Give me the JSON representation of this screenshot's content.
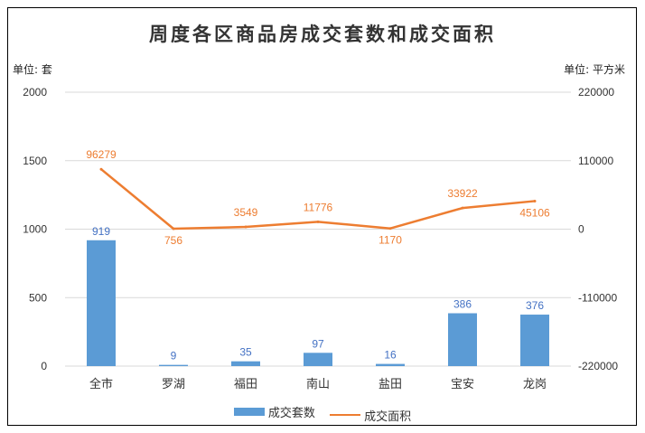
{
  "chart_data": {
    "type": "bar+line",
    "title": "周度各区商品房成交套数和成交面积",
    "categories": [
      "全市",
      "罗湖",
      "福田",
      "南山",
      "盐田",
      "宝安",
      "龙岗"
    ],
    "series": [
      {
        "name": "成交套数",
        "type": "bar",
        "axis": "left",
        "values": [
          919,
          9,
          35,
          97,
          16,
          386,
          376
        ],
        "color": "#5b9bd5"
      },
      {
        "name": "成交面积",
        "type": "line",
        "axis": "right",
        "values": [
          96279,
          756,
          3549,
          11776,
          1170,
          33922,
          45106
        ],
        "color": "#ed7d31"
      }
    ],
    "left_axis": {
      "unit_label": "单位: 套",
      "ylim": [
        0,
        2000
      ],
      "ticks": [
        "0",
        "500",
        "1000",
        "1500",
        "2000"
      ]
    },
    "right_axis": {
      "unit_label": "单位: 平方米",
      "ylim": [
        -220000,
        220000
      ],
      "ticks": [
        "-220000",
        "-110000",
        "0",
        "110000",
        "220000"
      ]
    },
    "grid": true,
    "legend_position": "bottom"
  }
}
